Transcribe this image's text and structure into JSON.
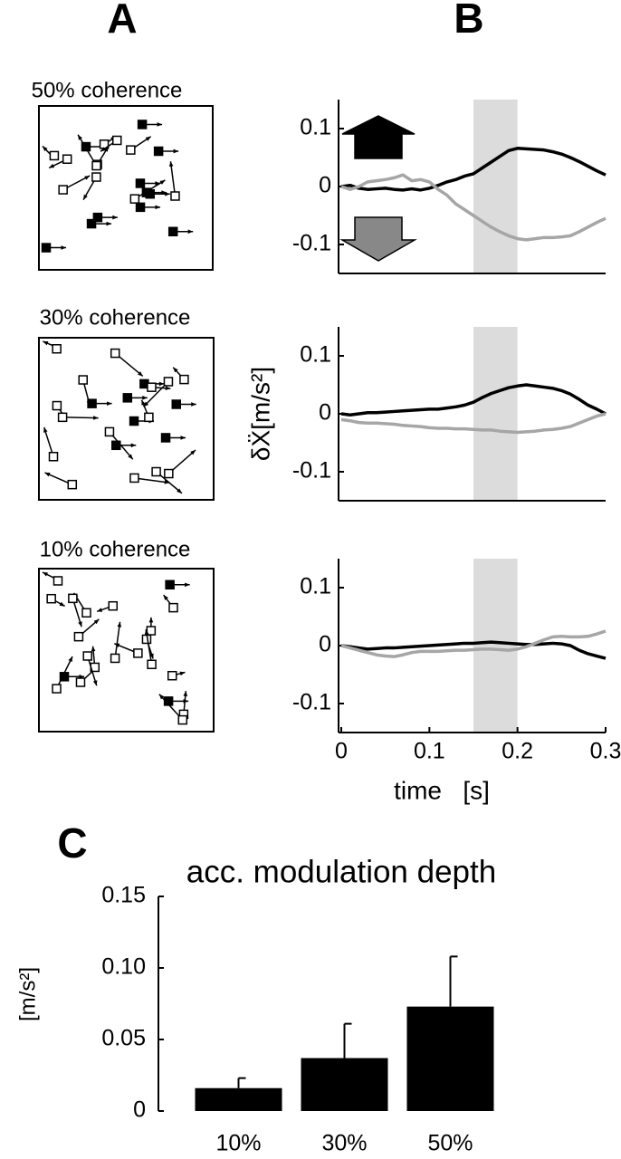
{
  "panel_labels": [
    "A",
    "B",
    "C"
  ],
  "stimulus_labels": [
    "50% coherence",
    "30% coherence",
    "10% coherence"
  ],
  "chart_data": [
    {
      "type": "line",
      "x": [
        0,
        0.01,
        0.02,
        0.03,
        0.04,
        0.05,
        0.06,
        0.07,
        0.08,
        0.09,
        0.1,
        0.11,
        0.12,
        0.13,
        0.14,
        0.15,
        0.16,
        0.17,
        0.18,
        0.19,
        0.2,
        0.21,
        0.22,
        0.23,
        0.24,
        0.25,
        0.26,
        0.27,
        0.28,
        0.29,
        0.3
      ],
      "series": [
        {
          "color": "#000000",
          "values": [
            0,
            0.002,
            -0.003,
            -0.005,
            -0.004,
            -0.003,
            -0.005,
            -0.006,
            -0.004,
            -0.006,
            -0.003,
            0.002,
            0.008,
            0.012,
            0.018,
            0.022,
            0.032,
            0.042,
            0.052,
            0.062,
            0.066,
            0.065,
            0.064,
            0.063,
            0.06,
            0.056,
            0.05,
            0.043,
            0.035,
            0.027,
            0.02
          ]
        },
        {
          "color": "#a6a6a6",
          "values": [
            0,
            -0.005,
            0,
            0.008,
            0.01,
            0.012,
            0.015,
            0.02,
            0.01,
            0.012,
            0.008,
            -0.005,
            -0.015,
            -0.03,
            -0.04,
            -0.05,
            -0.06,
            -0.07,
            -0.078,
            -0.085,
            -0.09,
            -0.092,
            -0.09,
            -0.088,
            -0.088,
            -0.087,
            -0.085,
            -0.078,
            -0.07,
            -0.062,
            -0.055
          ]
        }
      ],
      "highlight": [
        0.15,
        0.2
      ],
      "xlim": [
        0,
        0.3
      ],
      "ylim": [
        -0.15,
        0.15
      ],
      "yticks": [
        -0.1,
        0,
        0.1
      ]
    },
    {
      "type": "line",
      "x": [
        0,
        0.01,
        0.02,
        0.03,
        0.04,
        0.05,
        0.06,
        0.07,
        0.08,
        0.09,
        0.1,
        0.11,
        0.12,
        0.13,
        0.14,
        0.15,
        0.16,
        0.17,
        0.18,
        0.19,
        0.2,
        0.21,
        0.22,
        0.23,
        0.24,
        0.25,
        0.26,
        0.27,
        0.28,
        0.29,
        0.3
      ],
      "series": [
        {
          "color": "#000000",
          "values": [
            0,
            -0.002,
            0,
            0.002,
            0.002,
            0.003,
            0.004,
            0.005,
            0.006,
            0.007,
            0.008,
            0.008,
            0.01,
            0.012,
            0.015,
            0.02,
            0.028,
            0.035,
            0.04,
            0.045,
            0.048,
            0.05,
            0.048,
            0.046,
            0.044,
            0.04,
            0.034,
            0.025,
            0.015,
            0.008,
            0
          ]
        },
        {
          "color": "#a6a6a6",
          "values": [
            -0.01,
            -0.012,
            -0.015,
            -0.016,
            -0.016,
            -0.017,
            -0.018,
            -0.02,
            -0.021,
            -0.022,
            -0.024,
            -0.025,
            -0.025,
            -0.026,
            -0.026,
            -0.027,
            -0.028,
            -0.028,
            -0.03,
            -0.031,
            -0.032,
            -0.031,
            -0.03,
            -0.028,
            -0.027,
            -0.025,
            -0.022,
            -0.016,
            -0.01,
            -0.004,
            0
          ]
        }
      ],
      "highlight": [
        0.15,
        0.2
      ],
      "xlim": [
        0,
        0.3
      ],
      "ylim": [
        -0.15,
        0.15
      ],
      "yticks": [
        -0.1,
        0,
        0.1
      ],
      "ylabel": "δẌ[m/s²]"
    },
    {
      "type": "line",
      "x": [
        0,
        0.01,
        0.02,
        0.03,
        0.04,
        0.05,
        0.06,
        0.07,
        0.08,
        0.09,
        0.1,
        0.11,
        0.12,
        0.13,
        0.14,
        0.15,
        0.16,
        0.17,
        0.18,
        0.19,
        0.2,
        0.21,
        0.22,
        0.23,
        0.24,
        0.25,
        0.26,
        0.27,
        0.28,
        0.29,
        0.3
      ],
      "series": [
        {
          "color": "#000000",
          "values": [
            0,
            -0.002,
            -0.004,
            -0.006,
            -0.005,
            -0.004,
            -0.004,
            -0.003,
            -0.002,
            -0.001,
            0,
            0.001,
            0.002,
            0.003,
            0.004,
            0.004,
            0.005,
            0.006,
            0.005,
            0.004,
            0.003,
            0.002,
            0.002,
            0.003,
            0.004,
            0.003,
            0,
            -0.008,
            -0.014,
            -0.018,
            -0.022
          ]
        },
        {
          "color": "#a6a6a6",
          "values": [
            0,
            -0.004,
            -0.008,
            -0.012,
            -0.016,
            -0.018,
            -0.019,
            -0.016,
            -0.012,
            -0.01,
            -0.01,
            -0.01,
            -0.009,
            -0.008,
            -0.008,
            -0.007,
            -0.006,
            -0.006,
            -0.007,
            -0.008,
            -0.006,
            -0.002,
            0.004,
            0.01,
            0.015,
            0.016,
            0.015,
            0.015,
            0.016,
            0.02,
            0.025
          ]
        }
      ],
      "highlight": [
        0.15,
        0.2
      ],
      "xlim": [
        0,
        0.3
      ],
      "ylim": [
        -0.15,
        0.15
      ],
      "yticks": [
        -0.1,
        0,
        0.1
      ],
      "xticks": [
        0,
        0.1,
        0.2,
        0.3
      ],
      "xlabel": "time   [s]"
    },
    {
      "type": "bar",
      "title": "acc. modulation depth",
      "categories": [
        "10%",
        "30%",
        "50%"
      ],
      "values": [
        0.016,
        0.037,
        0.073
      ],
      "errors": [
        0.007,
        0.024,
        0.035
      ],
      "color": "#000000",
      "ylim": [
        0,
        0.15
      ],
      "yticks": [
        0,
        0.05,
        {
          "value": 0.1,
          "label": "0.10"
        },
        0.15
      ],
      "ylabel": "[m/s²]"
    }
  ]
}
